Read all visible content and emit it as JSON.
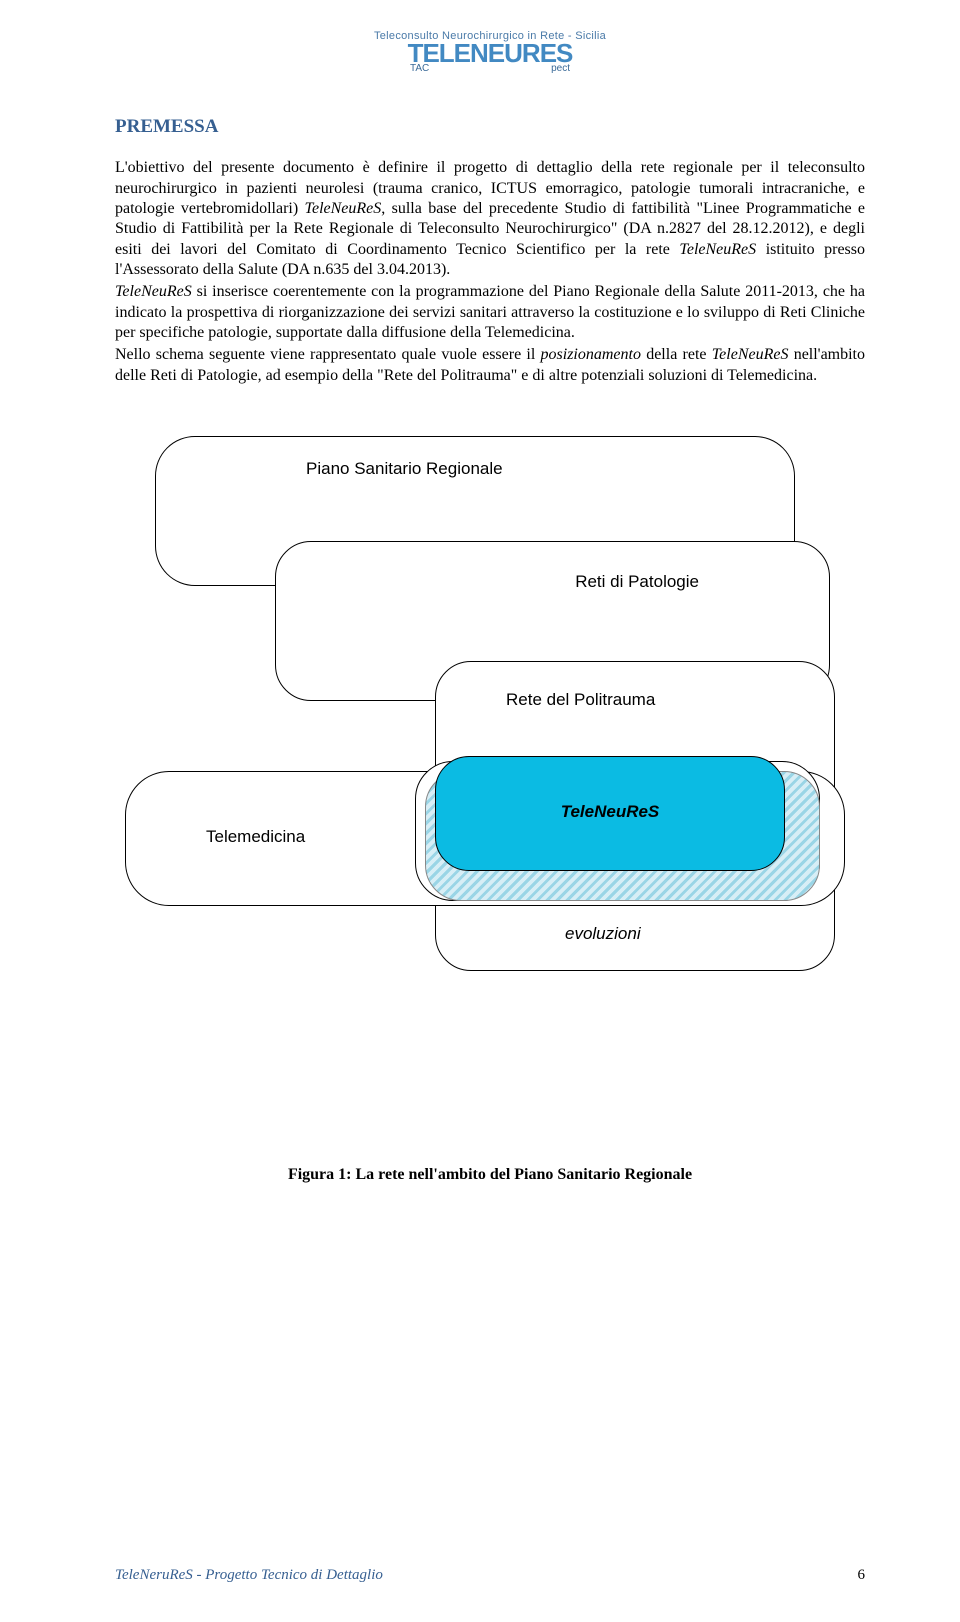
{
  "logo": {
    "top": "Teleconsulto Neurochirurgico in Rete - Sicilia",
    "main": "TELENEURES",
    "sub_left": "TAC",
    "sub_right": "pect"
  },
  "heading": "PREMESSA",
  "paragraphs": {
    "p1_pre": "L'obiettivo del presente documento è definire il progetto di dettaglio della rete regionale per il teleconsulto neurochirurgico in pazienti neurolesi (trauma cranico, ICTUS emorragico, patologie tumorali intracraniche, e patologie vertebromidollari) ",
    "p1_it1": "TeleNeuReS",
    "p1_mid1": ", sulla base del precedente Studio di fattibilità \"Linee Programmatiche e Studio di Fattibilità per la Rete Regionale di Teleconsulto Neurochirurgico\" (DA n.2827 del 28.12.2012), e degli esiti dei lavori del Comitato di Coordinamento Tecnico Scientifico per la rete ",
    "p1_it2": "TeleNeuReS",
    "p1_post": " istituito presso l'Assessorato della Salute (DA n.635 del 3.04.2013).",
    "p2_it": "TeleNeuReS",
    "p2_rest": " si inserisce coerentemente con la programmazione del Piano Regionale della Salute 2011-2013, che ha indicato la prospettiva di riorganizzazione dei servizi sanitari attraverso la costituzione e lo sviluppo di Reti Cliniche per specifiche patologie, supportate dalla diffusione della Telemedicina.",
    "p3_pre": "Nello schema seguente viene rappresentato quale vuole essere il ",
    "p3_it1": "posizionamento",
    "p3_mid": " della rete ",
    "p3_it2": "TeleNeuReS",
    "p3_post": " nell'ambito delle Reti di Patologie, ad esempio della \"Rete del Politrauma\" e di altre potenziali soluzioni di Telemedicina."
  },
  "diagram": {
    "psr": "Piano Sanitario Regionale",
    "reti": "Reti di Patologie",
    "poli": "Rete del Politrauma",
    "tele": "Telemedicina",
    "teleneures": "TeleNeuReS",
    "evoluzioni": "evoluzioni",
    "colors": {
      "teleneures_fill": "#0bbbe3",
      "hatch_light": "#d7eef6",
      "hatch_dark": "#9ad5e6",
      "border": "#000000",
      "background": "#ffffff"
    },
    "border_radius": 40
  },
  "caption": "Figura 1: La rete nell'ambito del Piano Sanitario Regionale",
  "footer": {
    "left": "TeleNeruReS - Progetto Tecnico di Dettaglio",
    "page": "6"
  }
}
